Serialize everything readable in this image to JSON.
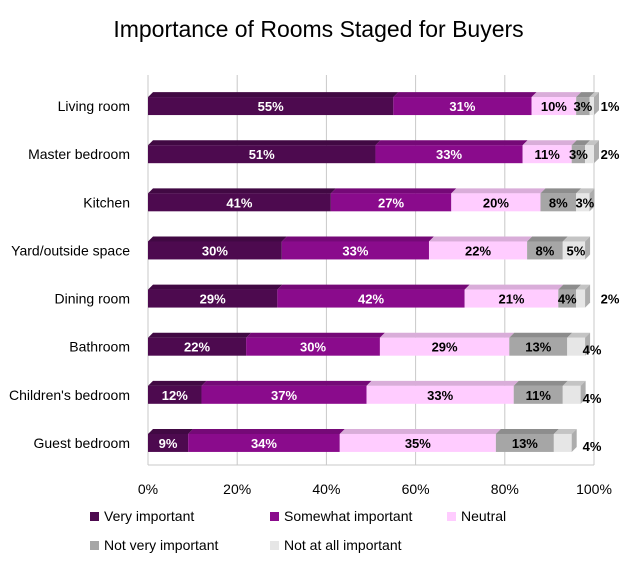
{
  "chart_data": {
    "type": "bar",
    "orientation": "horizontal",
    "stacked": true,
    "title": "Importance of Rooms Staged for Buyers",
    "categories": [
      "Living room",
      "Master bedroom",
      "Kitchen",
      "Yard/outside space",
      "Dining room",
      "Bathroom",
      "Children's bedroom",
      "Guest bedroom"
    ],
    "series": [
      {
        "name": "Very important",
        "color": "#4d0a4f",
        "values": [
          55,
          51,
          41,
          30,
          29,
          22,
          12,
          9
        ]
      },
      {
        "name": "Somewhat important",
        "color": "#8a0b8c",
        "values": [
          31,
          33,
          27,
          33,
          42,
          30,
          37,
          34
        ]
      },
      {
        "name": "Neutral",
        "color": "#ffccff",
        "values": [
          10,
          11,
          20,
          22,
          21,
          29,
          33,
          35
        ]
      },
      {
        "name": "Not very important",
        "color": "#a6a6a6",
        "values": [
          3,
          3,
          8,
          8,
          4,
          13,
          11,
          13
        ]
      },
      {
        "name": "Not at all important",
        "color": "#e6e6e6",
        "values": [
          1,
          2,
          3,
          5,
          2,
          4,
          4,
          4
        ]
      }
    ],
    "xlim": [
      0,
      100
    ],
    "xticks": [
      "0%",
      "20%",
      "40%",
      "60%",
      "80%",
      "100%"
    ],
    "grid": "vertical",
    "legend_position": "bottom"
  }
}
